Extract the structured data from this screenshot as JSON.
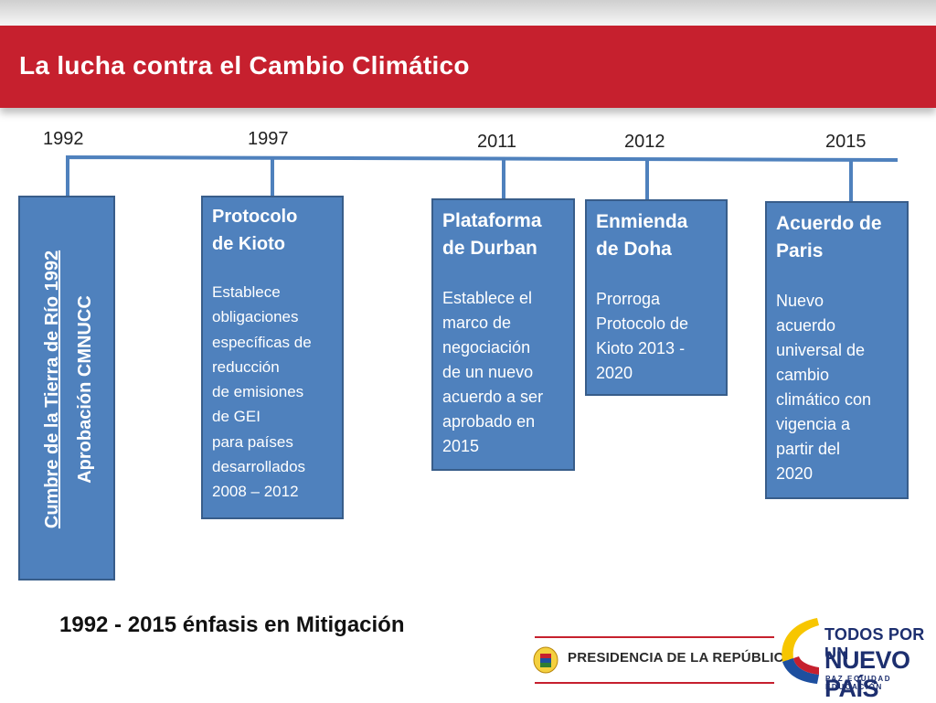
{
  "header": {
    "title": "La lucha contra el Cambio Climático"
  },
  "timeline": {
    "events": [
      {
        "year": "1992",
        "title_line1": "Cumbre de la Tierra de Río 1992",
        "title_line2": "Aprobación CMNUCC"
      },
      {
        "year": "1997",
        "title": "Protocolo\nde Kioto",
        "description": "Establece\nobligaciones\nespecíficas de\nreducción\nde emisiones\nde GEI\npara países\ndesarrollados\n 2008 – 2012"
      },
      {
        "year": "2011",
        "title": "Plataforma\nde Durban",
        "description": "Establece el\nmarco de\nnegociación\nde un nuevo\nacuerdo a ser\naprobado en\n2015"
      },
      {
        "year": "2012",
        "title": "Enmienda\nde Doha",
        "description": "Prorroga\nProtocolo de\nKioto 2013 -\n2020"
      },
      {
        "year": "2015",
        "title": "Acuerdo de\nParis",
        "description": "Nuevo\nacuerdo\nuniversal de\ncambio\nclimático con\nvigencia a\npartir del\n2020"
      }
    ]
  },
  "emphasis": "1992 - 2015 énfasis en Mitigación",
  "footer": {
    "presidencia": "PRESIDENCIA DE LA REPÚBLICA",
    "logo_line1": "TODOS POR UN",
    "logo_line2": "NUEVO PAÍS",
    "logo_tagline": "PAZ  EQUIDAD  EDUCACIÓN"
  },
  "colors": {
    "banner": "#c6202e",
    "box": "#4f81bd",
    "box_border": "#385d8a",
    "logo_blue": "#1d2f6f"
  }
}
